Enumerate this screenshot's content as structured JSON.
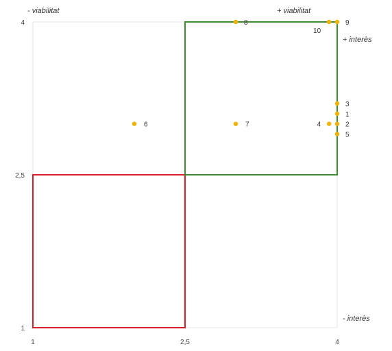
{
  "chart_data": {
    "type": "scatter",
    "x_ticks": [
      "1",
      "2,5",
      "4"
    ],
    "y_ticks": [
      "1",
      "2,5",
      "4"
    ],
    "xlim": [
      1,
      4
    ],
    "ylim": [
      1,
      4
    ],
    "grid": true,
    "corner_labels": {
      "top_left": "- viabilitat",
      "top_right": "+ viabilitat",
      "right_top": "+ interès",
      "right_bottom": "- interès"
    },
    "point_color": "#F2B300",
    "points": [
      {
        "label": "1",
        "x": 4.0,
        "y": 3.1
      },
      {
        "label": "2",
        "x": 4.0,
        "y": 3.0
      },
      {
        "label": "3",
        "x": 4.0,
        "y": 3.2
      },
      {
        "label": "4",
        "x": 3.92,
        "y": 3.0
      },
      {
        "label": "5",
        "x": 4.0,
        "y": 2.9
      },
      {
        "label": "6",
        "x": 2.0,
        "y": 3.0
      },
      {
        "label": "7",
        "x": 3.0,
        "y": 3.0
      },
      {
        "label": "8",
        "x": 3.0,
        "y": 4.0
      },
      {
        "label": "9",
        "x": 4.0,
        "y": 4.0
      },
      {
        "label": "10",
        "x": 3.92,
        "y": 4.0
      }
    ],
    "boxes": [
      {
        "color": "#D9202A",
        "x0": 1,
        "x1": 2.5,
        "y0": 1,
        "y1": 2.5
      },
      {
        "color": "#3E8E2F",
        "x0": 2.5,
        "x1": 4,
        "y0": 2.5,
        "y1": 4
      }
    ]
  }
}
